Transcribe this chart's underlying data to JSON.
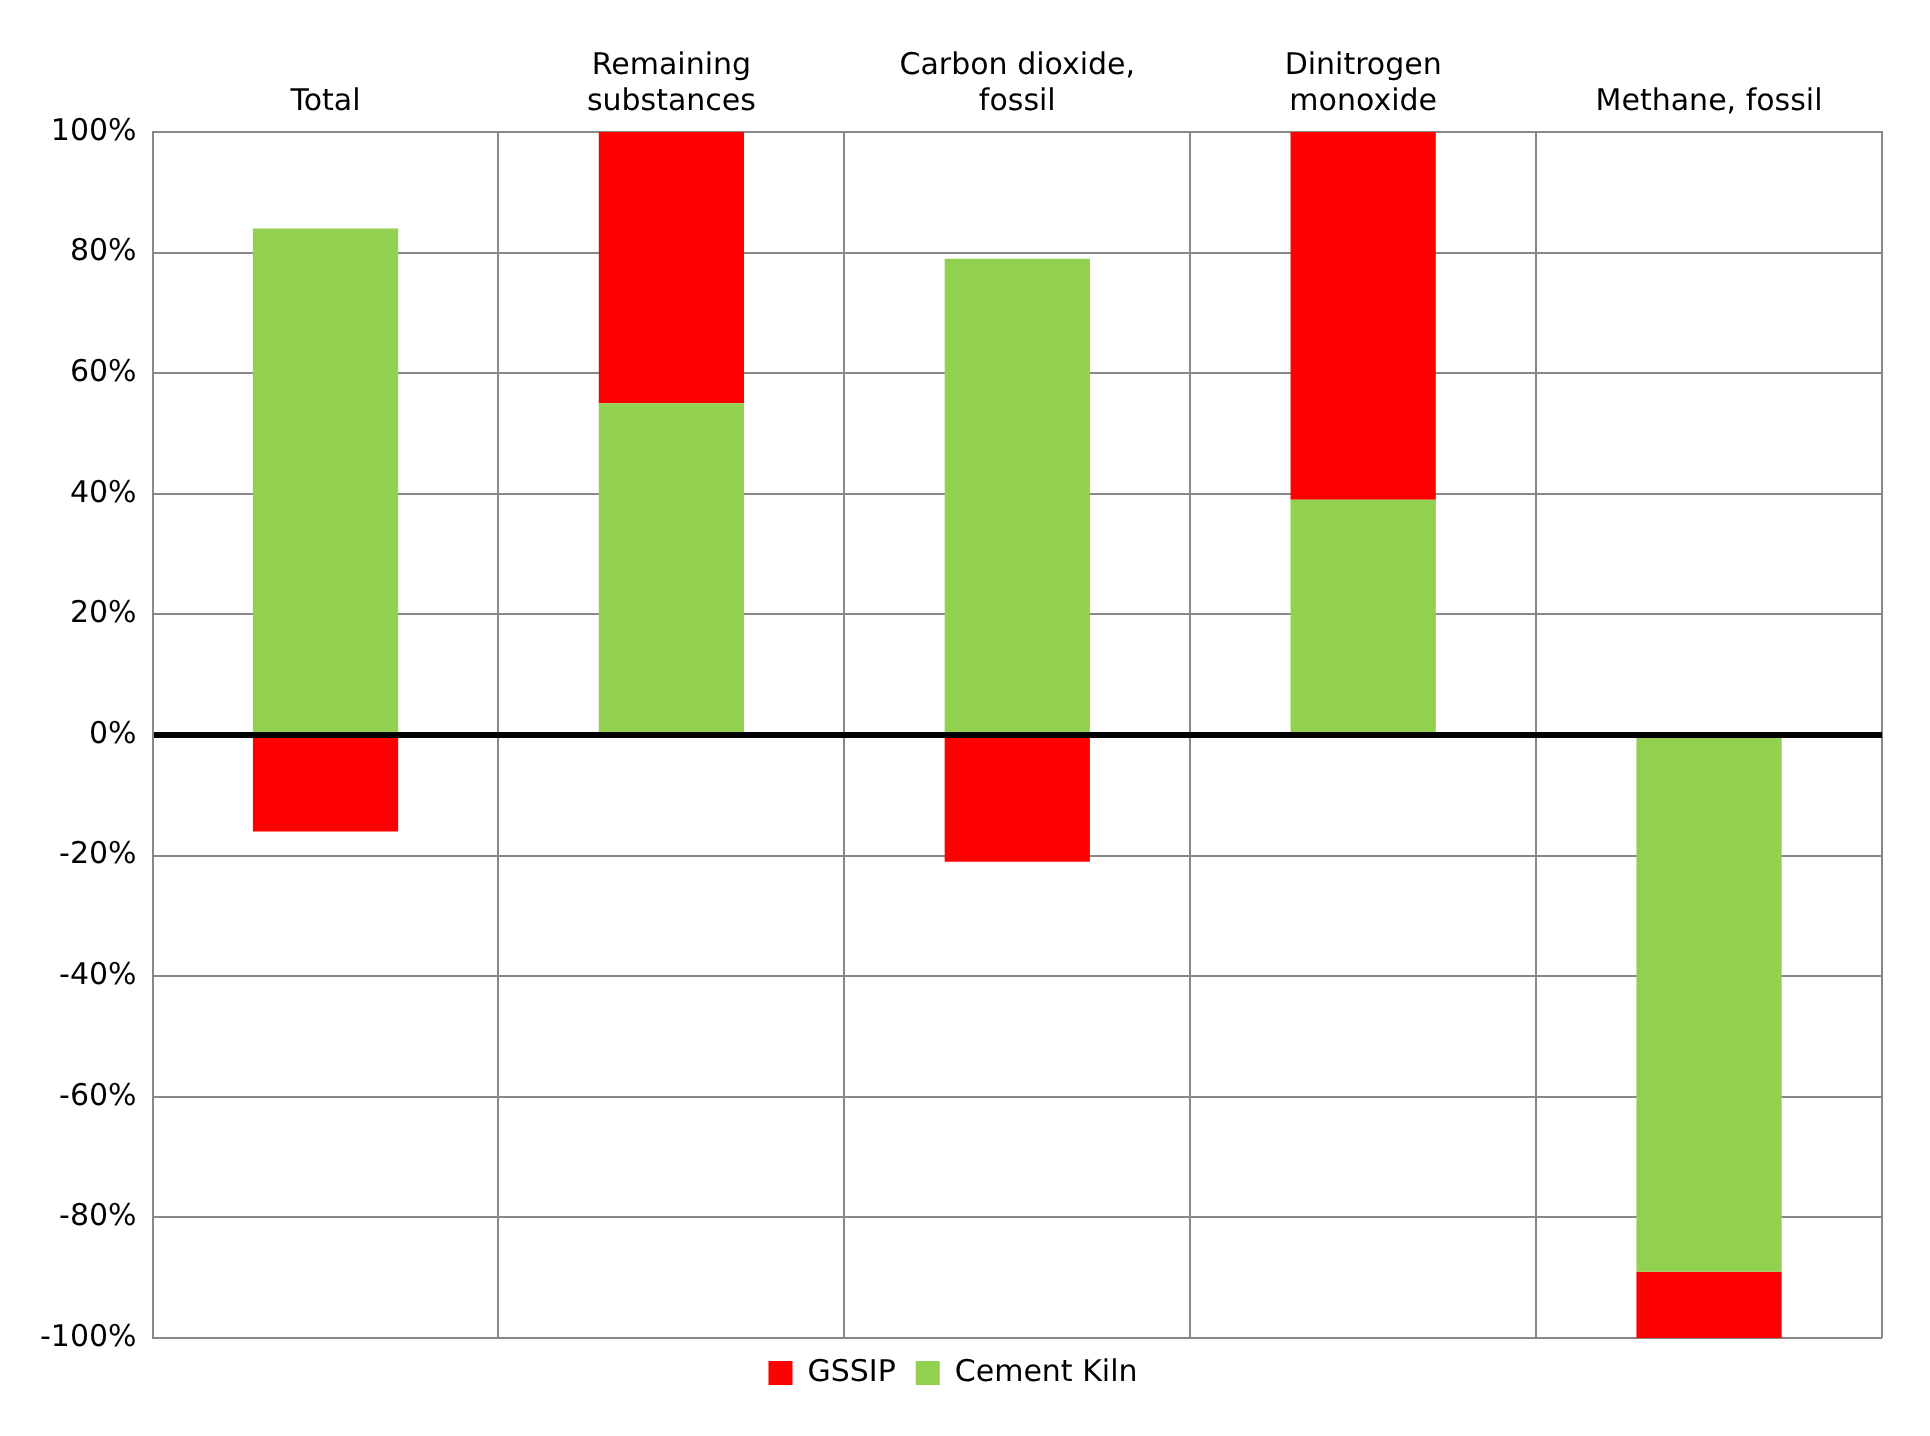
{
  "chart_data": {
    "type": "bar",
    "stacked": true,
    "categories": [
      "Total",
      "Remaining substances",
      "Carbon dioxide, fossil",
      "Dinitrogen monoxide",
      "Methane, fossil"
    ],
    "series": [
      {
        "name": "Cement Kiln",
        "color": "#92d050",
        "values": [
          84,
          55,
          79,
          39,
          -89
        ]
      },
      {
        "name": "GSSIP",
        "color": "#ff0000",
        "values": [
          -16,
          45,
          -21,
          61,
          -11
        ]
      }
    ],
    "ylim": [
      -100,
      100
    ],
    "yticks": [
      {
        "value": -100,
        "label": "-100%"
      },
      {
        "value": -80,
        "label": "-80%"
      },
      {
        "value": -60,
        "label": "-60%"
      },
      {
        "value": -40,
        "label": "-40%"
      },
      {
        "value": -20,
        "label": "-20%"
      },
      {
        "value": 0,
        "label": "0%"
      },
      {
        "value": 20,
        "label": "20%"
      },
      {
        "value": 40,
        "label": "40%"
      },
      {
        "value": 60,
        "label": "60%"
      },
      {
        "value": 80,
        "label": "80%"
      },
      {
        "value": 100,
        "label": "100%"
      }
    ],
    "grid": true,
    "legend": "bottom"
  }
}
